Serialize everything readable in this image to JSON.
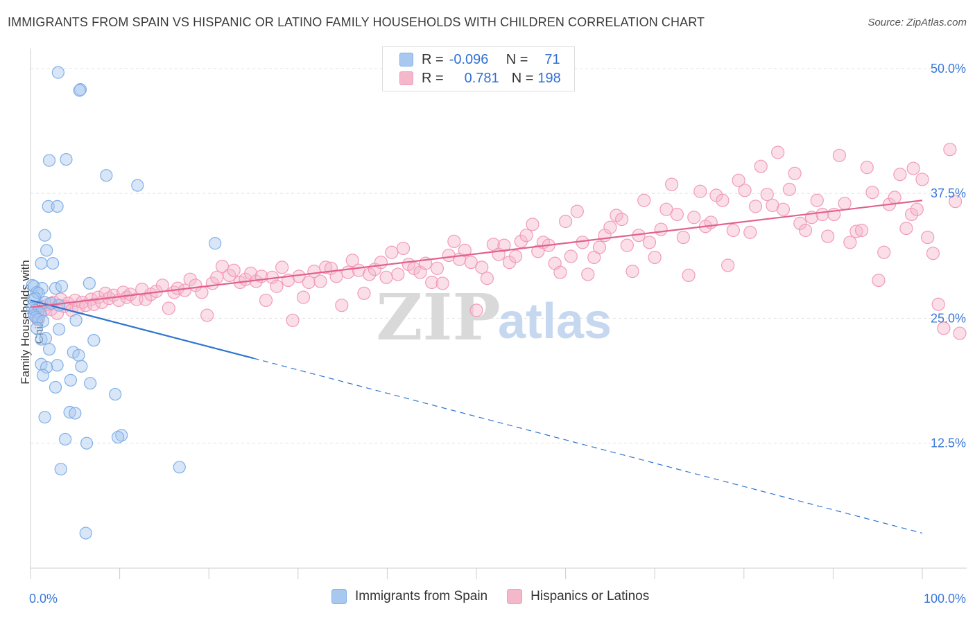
{
  "title": "IMMIGRANTS FROM SPAIN VS HISPANIC OR LATINO FAMILY HOUSEHOLDS WITH CHILDREN CORRELATION CHART",
  "source": "Source: ZipAtlas.com",
  "watermark": {
    "zip": "ZIP",
    "atlas": "atlas"
  },
  "legend": {
    "rows": [
      {
        "r_label": "R =",
        "r_value": "-0.096",
        "n_label": "N =",
        "n_value": "71",
        "color": "#a8c8f0"
      },
      {
        "r_label": "R =",
        "r_value": "0.781",
        "n_label": "N =",
        "n_value": "198",
        "color": "#f5b8cb"
      }
    ]
  },
  "bottom_legend": [
    {
      "label": "Immigrants from Spain",
      "color": "#a8c8f0"
    },
    {
      "label": "Hispanics or Latinos",
      "color": "#f5b8cb"
    }
  ],
  "chart_data": {
    "type": "scatter",
    "title": "IMMIGRANTS FROM SPAIN VS HISPANIC OR LATINO FAMILY HOUSEHOLDS WITH CHILDREN CORRELATION CHART",
    "xlabel": "",
    "ylabel": "Family Households with Children",
    "xlim": [
      0,
      100
    ],
    "ylim": [
      0,
      52
    ],
    "x_tick_labels": [
      "0.0%",
      "100.0%"
    ],
    "y_ticks": [
      12.5,
      25.0,
      37.5,
      50.0
    ],
    "y_tick_labels": [
      "12.5%",
      "25.0%",
      "37.5%",
      "50.0%"
    ],
    "grid": true,
    "series": [
      {
        "name": "Immigrants from Spain",
        "color": "#7fb0e8",
        "line_color": "#2e74d0",
        "trend": {
          "x0": 0,
          "y0": 26.8,
          "x1": 25,
          "y1": 21.0,
          "dash_to_x": 100,
          "dash_to_y": 3.5
        },
        "points": [
          [
            3.1,
            49.6
          ],
          [
            5.6,
            47.9
          ],
          [
            5.5,
            47.8
          ],
          [
            2.1,
            40.8
          ],
          [
            4.0,
            40.9
          ],
          [
            8.5,
            39.3
          ],
          [
            12.0,
            38.3
          ],
          [
            2.0,
            36.2
          ],
          [
            3.0,
            36.2
          ],
          [
            1.6,
            33.3
          ],
          [
            20.7,
            32.5
          ],
          [
            1.8,
            31.8
          ],
          [
            1.2,
            30.5
          ],
          [
            2.5,
            30.5
          ],
          [
            0.2,
            28.3
          ],
          [
            0.4,
            28.2
          ],
          [
            1.3,
            28.0
          ],
          [
            2.8,
            28.0
          ],
          [
            3.5,
            28.2
          ],
          [
            6.6,
            28.5
          ],
          [
            0.7,
            27.6
          ],
          [
            0.9,
            27.5
          ],
          [
            0.5,
            27.0
          ],
          [
            0.3,
            26.9
          ],
          [
            1.6,
            26.6
          ],
          [
            2.3,
            26.5
          ],
          [
            3.2,
            26.3
          ],
          [
            0.2,
            26.0
          ],
          [
            0.5,
            25.8
          ],
          [
            0.8,
            25.6
          ],
          [
            1.1,
            25.5
          ],
          [
            0.4,
            25.3
          ],
          [
            0.6,
            25.1
          ],
          [
            0.9,
            24.9
          ],
          [
            1.4,
            24.7
          ],
          [
            5.1,
            24.8
          ],
          [
            0.7,
            24.0
          ],
          [
            3.2,
            23.9
          ],
          [
            1.2,
            22.9
          ],
          [
            1.7,
            23.0
          ],
          [
            7.1,
            22.8
          ],
          [
            2.1,
            21.9
          ],
          [
            4.8,
            21.6
          ],
          [
            5.4,
            21.3
          ],
          [
            1.2,
            20.4
          ],
          [
            3.0,
            20.3
          ],
          [
            5.7,
            20.2
          ],
          [
            1.8,
            20.1
          ],
          [
            1.4,
            19.3
          ],
          [
            4.5,
            18.8
          ],
          [
            6.7,
            18.5
          ],
          [
            2.8,
            18.1
          ],
          [
            9.5,
            17.4
          ],
          [
            4.4,
            15.6
          ],
          [
            5.0,
            15.5
          ],
          [
            1.6,
            15.1
          ],
          [
            10.2,
            13.3
          ],
          [
            9.8,
            13.1
          ],
          [
            3.9,
            12.9
          ],
          [
            6.3,
            12.5
          ],
          [
            3.4,
            9.9
          ],
          [
            16.7,
            10.1
          ],
          [
            6.2,
            3.5
          ]
        ]
      },
      {
        "name": "Hispanics or Latinos",
        "color": "#f29ab7",
        "line_color": "#e26090",
        "trend": {
          "x0": 0,
          "y0": 26.1,
          "x1": 100,
          "y1": 36.8
        },
        "points": [
          [
            0.5,
            25.3
          ],
          [
            0.8,
            24.9
          ],
          [
            1.0,
            25.6
          ],
          [
            1.2,
            26.2
          ],
          [
            1.5,
            25.8
          ],
          [
            2.0,
            26.4
          ],
          [
            2.3,
            25.9
          ],
          [
            2.6,
            26.6
          ],
          [
            3.0,
            25.5
          ],
          [
            3.4,
            26.9
          ],
          [
            3.8,
            26.2
          ],
          [
            4.2,
            26.5
          ],
          [
            4.6,
            25.8
          ],
          [
            5.0,
            26.8
          ],
          [
            5.4,
            26.1
          ],
          [
            5.8,
            26.6
          ],
          [
            6.2,
            26.3
          ],
          [
            6.8,
            26.9
          ],
          [
            7.1,
            26.4
          ],
          [
            7.6,
            27.1
          ],
          [
            8.0,
            26.6
          ],
          [
            8.4,
            27.5
          ],
          [
            8.8,
            27.0
          ],
          [
            9.3,
            27.3
          ],
          [
            9.9,
            26.8
          ],
          [
            10.4,
            27.6
          ],
          [
            10.8,
            27.1
          ],
          [
            11.2,
            27.4
          ],
          [
            11.9,
            26.9
          ],
          [
            12.5,
            27.9
          ],
          [
            12.9,
            26.9
          ],
          [
            13.5,
            27.4
          ],
          [
            14.1,
            27.7
          ],
          [
            14.8,
            28.3
          ],
          [
            15.5,
            26.0
          ],
          [
            16.1,
            27.6
          ],
          [
            16.5,
            28.0
          ],
          [
            17.3,
            27.8
          ],
          [
            17.9,
            28.9
          ],
          [
            18.5,
            28.3
          ],
          [
            19.2,
            27.6
          ],
          [
            19.8,
            25.3
          ],
          [
            20.4,
            28.5
          ],
          [
            20.9,
            29.1
          ],
          [
            21.5,
            30.2
          ],
          [
            22.3,
            29.3
          ],
          [
            22.8,
            29.8
          ],
          [
            23.5,
            28.6
          ],
          [
            24.1,
            28.9
          ],
          [
            24.7,
            29.5
          ],
          [
            25.3,
            28.7
          ],
          [
            25.9,
            29.2
          ],
          [
            26.4,
            26.8
          ],
          [
            27.1,
            29.1
          ],
          [
            27.6,
            28.2
          ],
          [
            28.2,
            30.1
          ],
          [
            28.9,
            28.8
          ],
          [
            29.4,
            24.8
          ],
          [
            30.1,
            29.2
          ],
          [
            30.6,
            27.1
          ],
          [
            31.2,
            28.6
          ],
          [
            31.8,
            29.7
          ],
          [
            32.5,
            28.7
          ],
          [
            33.1,
            30.1
          ],
          [
            33.7,
            30.0
          ],
          [
            34.3,
            29.2
          ],
          [
            34.9,
            26.3
          ],
          [
            35.6,
            29.6
          ],
          [
            36.1,
            30.8
          ],
          [
            36.8,
            29.8
          ],
          [
            37.4,
            27.5
          ],
          [
            38.0,
            29.4
          ],
          [
            38.6,
            29.9
          ],
          [
            39.3,
            30.6
          ],
          [
            39.9,
            29.1
          ],
          [
            40.5,
            31.6
          ],
          [
            41.2,
            29.4
          ],
          [
            41.8,
            32.0
          ],
          [
            42.4,
            30.4
          ],
          [
            43.0,
            30.0
          ],
          [
            43.7,
            29.6
          ],
          [
            44.3,
            30.5
          ],
          [
            45.0,
            28.6
          ],
          [
            45.6,
            30.0
          ],
          [
            46.2,
            28.5
          ],
          [
            46.9,
            31.3
          ],
          [
            47.5,
            32.7
          ],
          [
            48.1,
            30.9
          ],
          [
            48.7,
            31.8
          ],
          [
            49.4,
            30.6
          ],
          [
            50.0,
            25.8
          ],
          [
            50.6,
            30.1
          ],
          [
            51.2,
            29.0
          ],
          [
            51.9,
            32.4
          ],
          [
            52.5,
            31.4
          ],
          [
            53.1,
            32.3
          ],
          [
            53.7,
            30.6
          ],
          [
            54.4,
            31.2
          ],
          [
            55.0,
            32.7
          ],
          [
            55.6,
            33.3
          ],
          [
            56.3,
            34.4
          ],
          [
            56.9,
            31.7
          ],
          [
            57.5,
            32.6
          ],
          [
            58.1,
            32.3
          ],
          [
            58.8,
            30.5
          ],
          [
            59.4,
            29.6
          ],
          [
            60.0,
            34.7
          ],
          [
            60.6,
            31.2
          ],
          [
            61.3,
            35.7
          ],
          [
            61.9,
            32.6
          ],
          [
            62.5,
            29.4
          ],
          [
            63.2,
            31.1
          ],
          [
            63.8,
            32.1
          ],
          [
            64.4,
            33.3
          ],
          [
            65.0,
            34.1
          ],
          [
            65.7,
            35.3
          ],
          [
            66.3,
            34.9
          ],
          [
            66.9,
            32.3
          ],
          [
            67.5,
            29.7
          ],
          [
            68.2,
            33.3
          ],
          [
            68.8,
            36.8
          ],
          [
            69.4,
            32.6
          ],
          [
            70.0,
            31.1
          ],
          [
            70.7,
            33.9
          ],
          [
            71.3,
            35.9
          ],
          [
            71.9,
            38.4
          ],
          [
            72.5,
            35.4
          ],
          [
            73.2,
            33.1
          ],
          [
            73.8,
            29.3
          ],
          [
            74.4,
            35.1
          ],
          [
            75.1,
            37.7
          ],
          [
            75.7,
            34.2
          ],
          [
            76.3,
            34.6
          ],
          [
            76.9,
            37.3
          ],
          [
            77.6,
            36.8
          ],
          [
            78.2,
            30.3
          ],
          [
            78.8,
            33.8
          ],
          [
            79.4,
            38.8
          ],
          [
            80.1,
            37.8
          ],
          [
            80.7,
            33.6
          ],
          [
            81.3,
            36.2
          ],
          [
            81.9,
            40.2
          ],
          [
            82.6,
            37.4
          ],
          [
            83.2,
            36.3
          ],
          [
            83.8,
            41.6
          ],
          [
            84.4,
            35.9
          ],
          [
            85.1,
            37.9
          ],
          [
            85.7,
            39.5
          ],
          [
            86.3,
            34.5
          ],
          [
            86.9,
            33.8
          ],
          [
            87.6,
            35.1
          ],
          [
            88.2,
            36.8
          ],
          [
            88.8,
            35.4
          ],
          [
            89.4,
            33.2
          ],
          [
            90.1,
            35.4
          ],
          [
            90.7,
            41.3
          ],
          [
            91.3,
            36.5
          ],
          [
            91.9,
            32.6
          ],
          [
            92.6,
            33.7
          ],
          [
            93.2,
            33.8
          ],
          [
            93.8,
            40.1
          ],
          [
            94.4,
            37.6
          ],
          [
            95.1,
            28.8
          ],
          [
            95.7,
            31.6
          ],
          [
            96.3,
            36.4
          ],
          [
            96.9,
            37.1
          ],
          [
            97.5,
            39.4
          ],
          [
            98.2,
            34.0
          ],
          [
            98.8,
            35.4
          ],
          [
            99.4,
            35.9
          ],
          [
            100.0,
            38.9
          ],
          [
            100.6,
            33.1
          ],
          [
            101.2,
            31.5
          ],
          [
            101.8,
            26.4
          ],
          [
            102.4,
            24.0
          ],
          [
            103.1,
            41.9
          ],
          [
            103.7,
            36.7
          ],
          [
            104.3,
            23.5
          ],
          [
            99.0,
            40.0
          ]
        ]
      }
    ]
  }
}
